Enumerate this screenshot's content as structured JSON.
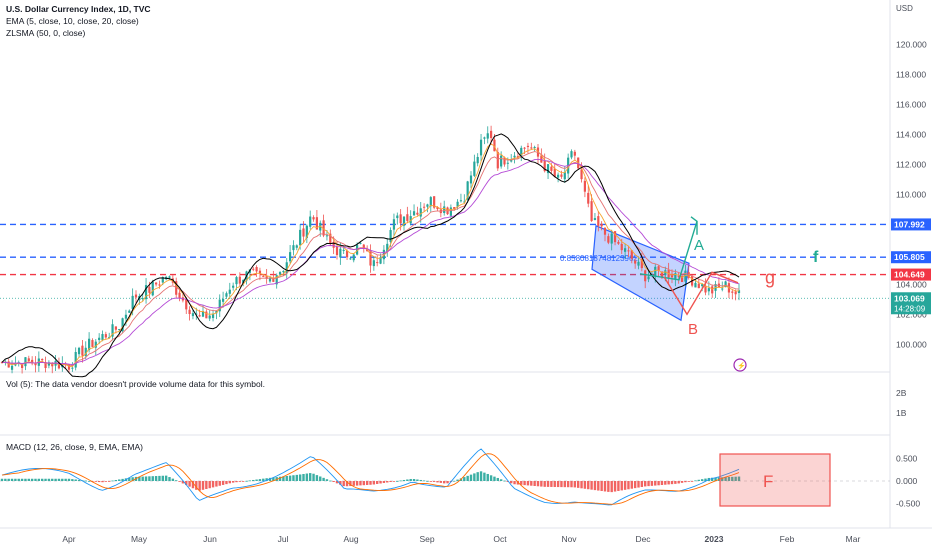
{
  "header": {
    "title": "U.S. Dollar Currency Index, 1D, TVC",
    "ema": "EMA (5, close, 10, close, 20, close)",
    "zlsma": "ZLSMA (50, 0, close)",
    "currency": "USD"
  },
  "volume_note": "Vol (5): The data vendor doesn't provide volume data for this symbol.",
  "macd_label": "MACD (12, 26, close, 9, EMA, EMA)",
  "colors": {
    "up": "#26a69a",
    "down": "#ef5350",
    "blue_line": "#2962ff",
    "red_line": "#f23645",
    "ema_fast": "#f7a531",
    "ema_mid": "#e57373",
    "ema_slow": "#b54bd6",
    "zlsma": "#000000",
    "macd": "#2196f3",
    "signal": "#ff6d00",
    "green_note": "#22ab94"
  },
  "chart_data": [
    {
      "type": "candlestick",
      "name": "U.S. Dollar Currency Index",
      "x_ticks": [
        "Apr",
        "May",
        "Jun",
        "Jul",
        "Aug",
        "Sep",
        "Oct",
        "Nov",
        "Dec",
        "2023",
        "Feb",
        "Mar"
      ],
      "y_ticks": [
        "120.000",
        "118.000",
        "116.000",
        "114.000",
        "112.000",
        "110.000",
        "108.000",
        "106.000",
        "104.000",
        "102.000",
        "100.000",
        "98.000"
      ],
      "ylim": [
        97.3,
        121.6
      ],
      "close_path": [
        [
          "Mar 25",
          98.8
        ],
        [
          "Apr 1",
          98.6
        ],
        [
          "Apr 8",
          99.8
        ],
        [
          "Apr 15",
          100.5
        ],
        [
          "Apr 22",
          101.1
        ],
        [
          "Apr 29",
          103.2
        ],
        [
          "May 6",
          103.7
        ],
        [
          "May 13",
          104.6
        ],
        [
          "May 20",
          103.0
        ],
        [
          "May 27",
          101.7
        ],
        [
          "Jun 3",
          102.1
        ],
        [
          "Jun 10",
          104.1
        ],
        [
          "Jun 17",
          104.7
        ],
        [
          "Jun 24",
          104.2
        ],
        [
          "Jul 1",
          105.1
        ],
        [
          "Jul 8",
          107.0
        ],
        [
          "Jul 14",
          108.6
        ],
        [
          "Jul 22",
          106.7
        ],
        [
          "Jul 29",
          105.9
        ],
        [
          "Aug 5",
          106.6
        ],
        [
          "Aug 10",
          105.2
        ],
        [
          "Aug 19",
          108.2
        ],
        [
          "Aug 26",
          108.8
        ],
        [
          "Sep 2",
          109.6
        ],
        [
          "Sep 9",
          109.0
        ],
        [
          "Sep 16",
          109.8
        ],
        [
          "Sep 23",
          113.2
        ],
        [
          "Sep 27",
          114.2
        ],
        [
          "Sep 30",
          112.1
        ],
        [
          "Oct 7",
          112.7
        ],
        [
          "Oct 14",
          113.3
        ],
        [
          "Oct 21",
          111.9
        ],
        [
          "Oct 28",
          110.8
        ],
        [
          "Nov 3",
          112.9
        ],
        [
          "Nov 10",
          108.2
        ],
        [
          "Nov 18",
          107.0
        ],
        [
          "Nov 25",
          106.0
        ],
        [
          "Dec 2",
          104.6
        ],
        [
          "Dec 9",
          104.8
        ],
        [
          "Dec 16",
          104.7
        ],
        [
          "Dec 23",
          104.3
        ],
        [
          "Dec 30",
          103.5
        ],
        [
          "Jan 6",
          103.9
        ],
        [
          "Jan 12",
          103.2
        ]
      ],
      "levels": [
        {
          "value": "107.992",
          "style": "dashed",
          "color": "#2962ff",
          "tag": "f"
        },
        {
          "value": "105.805",
          "style": "dashed",
          "color": "#2962ff"
        },
        {
          "value": "104.649",
          "style": "dashed",
          "color": "#f23645",
          "tag": "g"
        }
      ],
      "last_price": {
        "value": "103.069",
        "countdown": "14:28:09"
      },
      "channel_label": "0.8580818748123962",
      "annotations": [
        "A",
        "B",
        "f",
        "g"
      ]
    },
    {
      "type": "bar",
      "name": "MACD (12, 26, close, 9, EMA, EMA)",
      "y_ticks": [
        "0.500",
        "0.000",
        "-0.500"
      ],
      "ylim": [
        -0.75,
        0.75
      ],
      "histogram_path": [
        [
          "Apr 1",
          0.05
        ],
        [
          "Apr 15",
          -0.03
        ],
        [
          "Apr 29",
          0.09
        ],
        [
          "May 13",
          0.12
        ],
        [
          "May 27",
          -0.22
        ],
        [
          "Jun 10",
          -0.04
        ],
        [
          "Jun 24",
          0.06
        ],
        [
          "Jul 8",
          0.14
        ],
        [
          "Jul 14",
          0.18
        ],
        [
          "Jul 29",
          -0.12
        ],
        [
          "Aug 10",
          -0.08
        ],
        [
          "Aug 26",
          0.05
        ],
        [
          "Sep 9",
          -0.06
        ],
        [
          "Sep 23",
          0.22
        ],
        [
          "Oct 7",
          -0.07
        ],
        [
          "Oct 21",
          -0.13
        ],
        [
          "Nov 3",
          -0.14
        ],
        [
          "Nov 18",
          -0.25
        ],
        [
          "Dec 2",
          -0.12
        ],
        [
          "Dec 16",
          -0.06
        ],
        [
          "Dec 30",
          0.07
        ],
        [
          "Jan 12",
          0.1
        ]
      ],
      "note_box": {
        "text": "F"
      }
    },
    {
      "type": "bar",
      "name": "Vol (5)",
      "y_ticks": [
        "2B",
        "1B"
      ]
    }
  ]
}
